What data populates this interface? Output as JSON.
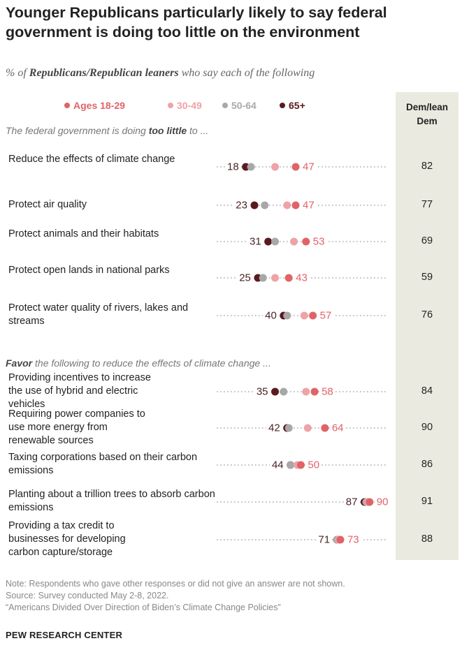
{
  "title": "Younger Republicans particularly likely to say federal government is doing too little on the environment",
  "subtitle": {
    "pre": "% of ",
    "bold": "Republicans/Republican leaners",
    "post": " who say each of the following"
  },
  "legend": [
    {
      "label": "Ages 18-29",
      "color": "#e06368"
    },
    {
      "label": "30-49",
      "color": "#eea3a6"
    },
    {
      "label": "50-64",
      "color": "#a8a8a8"
    },
    {
      "label": "65+",
      "color": "#5a1a1f"
    }
  ],
  "dem_header": "Dem/lean Dem",
  "sections": [
    {
      "pre": "The federal government is doing ",
      "bold": "too little",
      "post": " to ..."
    },
    {
      "pre": "",
      "bold": "Favor",
      "post": " the following to reduce the effects of climate change ..."
    }
  ],
  "chart_data": {
    "type": "dot",
    "xlim": [
      0,
      100
    ],
    "series_order": [
      "Ages 18-29",
      "30-49",
      "50-64",
      "65+"
    ],
    "rows": [
      {
        "label": "Reduce the effects of climate change",
        "values": {
          "18-29": 47,
          "30-49": 35,
          "50-64": 21,
          "65+": 18
        },
        "min_label": "18",
        "max_label": "47",
        "dem": "82"
      },
      {
        "label": "Protect air quality",
        "values": {
          "18-29": 47,
          "30-49": 42,
          "50-64": 29,
          "65+": 23
        },
        "min_label": "23",
        "max_label": "47",
        "dem": "77"
      },
      {
        "label": "Protect animals and their habitats",
        "values": {
          "18-29": 53,
          "30-49": 46,
          "50-64": 35,
          "65+": 31
        },
        "min_label": "31",
        "max_label": "53",
        "dem": "69"
      },
      {
        "label": "Protect open lands in national parks",
        "values": {
          "18-29": 43,
          "30-49": 35,
          "50-64": 28,
          "65+": 25
        },
        "min_label": "25",
        "max_label": "43",
        "dem": "59"
      },
      {
        "label": "Protect water quality of rivers, lakes and streams",
        "values": {
          "18-29": 57,
          "30-49": 52,
          "50-64": 42,
          "65+": 40
        },
        "min_label": "40",
        "max_label": "57",
        "dem": "76"
      },
      {
        "label": "Providing incentives to increase the use of hybrid and electric vehicles",
        "values": {
          "18-29": 58,
          "30-49": 53,
          "50-64": 40,
          "65+": 35
        },
        "min_label": "35",
        "max_label": "58",
        "dem": "84"
      },
      {
        "label": "Requiring power companies to use more energy from renewable sources",
        "values": {
          "18-29": 64,
          "30-49": 54,
          "50-64": 43,
          "65+": 42
        },
        "min_label": "42",
        "max_label": "64",
        "dem": "90"
      },
      {
        "label": "Taxing corporations based on their carbon emissions",
        "values": {
          "18-29": 50,
          "30-49": 48,
          "50-64": 44,
          "65+": 44
        },
        "min_label": "44",
        "max_label": "50",
        "dem": "86"
      },
      {
        "label": "Planting about a trillion trees to absorb carbon emissions",
        "values": {
          "18-29": 90,
          "30-49": 89,
          "50-64": 88,
          "65+": 87
        },
        "min_label": "87",
        "max_label": "90",
        "dem": "91"
      },
      {
        "label": "Providing a tax credit to businesses for developing carbon capture/storage",
        "values": {
          "18-29": 73,
          "30-49": 72,
          "50-64": 71,
          "65+": 71
        },
        "min_label": "71",
        "max_label": "73",
        "dem": "88"
      }
    ]
  },
  "notes": [
    "Note: Respondents who gave other responses or did not give an answer are not shown.",
    "Source: Survey conducted May 2-8, 2022.",
    "“Americans Divided Over Direction of Biden’s Climate Change Policies”"
  ],
  "org": "PEW RESEARCH CENTER"
}
